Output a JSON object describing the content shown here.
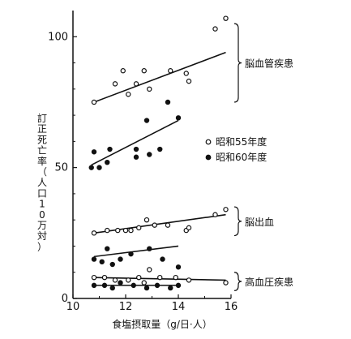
{
  "chart_data": {
    "type": "scatter",
    "xlabel": "食塩摂取量（g/日·人）",
    "ylabel": "訂正死亡率（人口10万対）",
    "xlim": [
      10,
      16
    ],
    "ylim": [
      0,
      110
    ],
    "xticks": [
      "10",
      "12",
      "14",
      "16"
    ],
    "yticks": [
      "0",
      "50",
      "100"
    ],
    "legend": {
      "placement": "right",
      "items": [
        {
          "label": "昭和55年度",
          "marker": "open-circle"
        },
        {
          "label": "昭和60年度",
          "marker": "filled-circle"
        }
      ]
    },
    "groups": [
      {
        "label": "脳血管疾患",
        "bracket": [
          75,
          105
        ]
      },
      {
        "label": "脳出血",
        "bracket": [
          24,
          35
        ]
      },
      {
        "label": "高血圧疾患",
        "bracket": [
          3,
          10
        ]
      }
    ],
    "series": [
      {
        "name": "脳血管疾患 昭和55年度",
        "marker": "open",
        "points": [
          [
            10.8,
            75
          ],
          [
            11.6,
            82
          ],
          [
            11.9,
            87
          ],
          [
            12.1,
            78
          ],
          [
            12.4,
            82
          ],
          [
            12.7,
            87
          ],
          [
            12.9,
            80
          ],
          [
            13.7,
            87
          ],
          [
            14.3,
            86
          ],
          [
            14.4,
            83
          ],
          [
            15.4,
            103
          ],
          [
            15.8,
            107
          ]
        ],
        "fit": [
          [
            10.8,
            75
          ],
          [
            15.8,
            94
          ]
        ]
      },
      {
        "name": "脳血管疾患 昭和60年度",
        "marker": "filled",
        "points": [
          [
            10.7,
            50
          ],
          [
            10.8,
            56
          ],
          [
            11.0,
            50
          ],
          [
            11.3,
            52
          ],
          [
            11.4,
            57
          ],
          [
            12.4,
            57
          ],
          [
            12.4,
            54
          ],
          [
            12.8,
            68
          ],
          [
            12.9,
            55
          ],
          [
            13.3,
            57
          ],
          [
            13.6,
            75
          ],
          [
            14.0,
            69
          ]
        ],
        "fit": [
          [
            10.7,
            51
          ],
          [
            14.0,
            68
          ]
        ]
      },
      {
        "name": "脳出血 昭和55年度",
        "marker": "open",
        "points": [
          [
            10.8,
            25
          ],
          [
            11.3,
            26
          ],
          [
            11.7,
            26
          ],
          [
            12.0,
            26
          ],
          [
            12.2,
            26
          ],
          [
            12.5,
            27
          ],
          [
            12.8,
            30
          ],
          [
            13.1,
            28
          ],
          [
            13.6,
            28
          ],
          [
            14.3,
            26
          ],
          [
            14.4,
            27
          ],
          [
            15.4,
            32
          ],
          [
            15.8,
            34
          ]
        ],
        "fit": [
          [
            10.8,
            25
          ],
          [
            15.8,
            32
          ]
        ]
      },
      {
        "name": "脳出血 昭和60年度",
        "marker": "filled",
        "points": [
          [
            10.8,
            15
          ],
          [
            11.1,
            14
          ],
          [
            11.3,
            19
          ],
          [
            11.5,
            13
          ],
          [
            11.8,
            15
          ],
          [
            12.2,
            17
          ],
          [
            12.9,
            19
          ],
          [
            13.4,
            15
          ],
          [
            14.0,
            12
          ]
        ],
        "fit": [
          [
            10.8,
            16
          ],
          [
            14.0,
            20
          ]
        ]
      },
      {
        "name": "高血圧疾患 昭和55年度",
        "marker": "open",
        "points": [
          [
            10.8,
            8
          ],
          [
            11.2,
            8
          ],
          [
            11.6,
            7
          ],
          [
            12.1,
            7
          ],
          [
            12.5,
            8
          ],
          [
            12.7,
            6
          ],
          [
            12.9,
            11
          ],
          [
            13.3,
            8
          ],
          [
            13.9,
            8
          ],
          [
            14.4,
            7
          ],
          [
            15.8,
            6
          ]
        ],
        "fit": [
          [
            10.8,
            8
          ],
          [
            15.8,
            7
          ]
        ]
      },
      {
        "name": "高血圧疾患 昭和60年度",
        "marker": "filled",
        "points": [
          [
            10.8,
            5
          ],
          [
            11.2,
            5
          ],
          [
            11.5,
            4
          ],
          [
            11.8,
            6
          ],
          [
            12.3,
            5
          ],
          [
            12.8,
            4
          ],
          [
            13.2,
            5
          ],
          [
            13.7,
            4
          ],
          [
            14.0,
            5
          ]
        ],
        "fit": [
          [
            10.8,
            5
          ],
          [
            14.0,
            5
          ]
        ]
      }
    ]
  }
}
